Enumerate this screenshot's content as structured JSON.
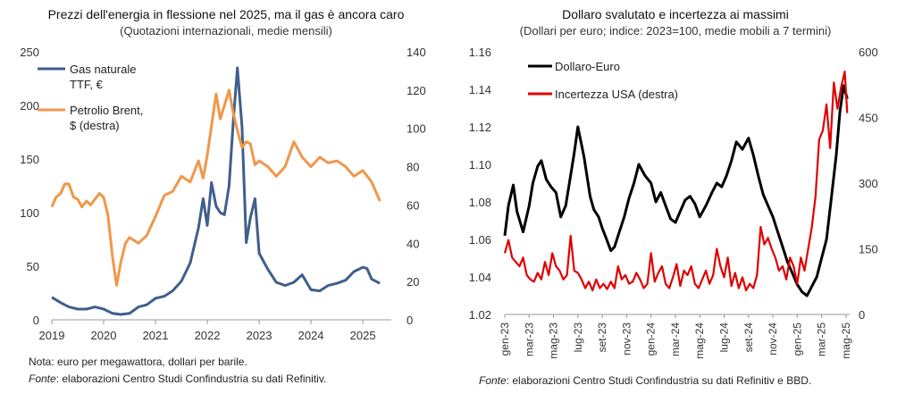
{
  "chart_data": [
    {
      "type": "line",
      "title": "Prezzi dell'energia in flessione nel 2025, ma il gas è ancora caro",
      "subtitle": "(Quotazioni internazionali, medie mensili)",
      "x_ticks": [
        "2019",
        "2020",
        "2021",
        "2022",
        "2023",
        "2024",
        "2025"
      ],
      "ylim_left": [
        0,
        250
      ],
      "yticks_left": [
        "0",
        "50",
        "100",
        "150",
        "200",
        "250"
      ],
      "ylim_right": [
        0,
        140
      ],
      "yticks_right": [
        "0",
        "20",
        "40",
        "60",
        "80",
        "100",
        "120",
        "140"
      ],
      "grid": false,
      "legend_position": "top-left",
      "series": [
        {
          "name": "Gas naturale TTF, €",
          "legend_lines": [
            "Gas naturale",
            "TTF, €"
          ],
          "axis": "left",
          "color": "#3f5f8c",
          "x": [
            2019.0,
            2019.17,
            2019.33,
            2019.5,
            2019.67,
            2019.83,
            2020.0,
            2020.17,
            2020.33,
            2020.5,
            2020.67,
            2020.83,
            2021.0,
            2021.17,
            2021.33,
            2021.5,
            2021.67,
            2021.83,
            2021.92,
            2022.0,
            2022.08,
            2022.17,
            2022.25,
            2022.33,
            2022.42,
            2022.5,
            2022.58,
            2022.67,
            2022.75,
            2022.83,
            2022.92,
            2023.0,
            2023.17,
            2023.33,
            2023.5,
            2023.67,
            2023.83,
            2024.0,
            2024.17,
            2024.33,
            2024.5,
            2024.67,
            2024.83,
            2025.0,
            2025.08,
            2025.17,
            2025.33
          ],
          "values": [
            21,
            16,
            12,
            10,
            10,
            12,
            10,
            6,
            5,
            6,
            12,
            14,
            20,
            22,
            27,
            36,
            53,
            86,
            113,
            88,
            128,
            106,
            100,
            98,
            125,
            185,
            235,
            180,
            72,
            95,
            113,
            62,
            47,
            35,
            32,
            35,
            42,
            28,
            27,
            32,
            34,
            37,
            45,
            49,
            48,
            38,
            34
          ]
        },
        {
          "name": "Petrolio Brent, $ (destra)",
          "legend_lines": [
            "Petrolio Brent,",
            "$ (destra)"
          ],
          "axis": "right",
          "color": "#f0974a",
          "x": [
            2019.0,
            2019.08,
            2019.17,
            2019.25,
            2019.33,
            2019.42,
            2019.5,
            2019.58,
            2019.67,
            2019.75,
            2019.83,
            2019.92,
            2020.0,
            2020.08,
            2020.17,
            2020.25,
            2020.33,
            2020.42,
            2020.5,
            2020.67,
            2020.83,
            2021.0,
            2021.17,
            2021.33,
            2021.5,
            2021.67,
            2021.83,
            2021.92,
            2022.0,
            2022.17,
            2022.25,
            2022.33,
            2022.42,
            2022.5,
            2022.58,
            2022.67,
            2022.75,
            2022.83,
            2022.92,
            2023.0,
            2023.17,
            2023.33,
            2023.5,
            2023.67,
            2023.83,
            2024.0,
            2024.17,
            2024.33,
            2024.5,
            2024.67,
            2024.83,
            2025.0,
            2025.17,
            2025.33
          ],
          "values": [
            59,
            64,
            66,
            71,
            71,
            64,
            63,
            59,
            62,
            60,
            63,
            66,
            64,
            55,
            33,
            18,
            30,
            40,
            43,
            40,
            44,
            54,
            65,
            67,
            75,
            72,
            83,
            74,
            86,
            118,
            105,
            112,
            120,
            108,
            99,
            90,
            93,
            92,
            81,
            83,
            80,
            75,
            80,
            93,
            85,
            80,
            85,
            82,
            83,
            80,
            75,
            78,
            72,
            62
          ]
        }
      ],
      "notes": [
        {
          "prefix": "",
          "text": "Nota: euro per megawattora, dollari per barile."
        },
        {
          "prefix": "Fonte",
          "text": ": elaborazioni Centro Studi Confindustria su dati Refinitiv."
        }
      ]
    },
    {
      "type": "line",
      "title": "Dollaro svalutato e incertezza ai massimi",
      "subtitle": "(Dollari per euro; indice: 2023=100, medie mobili a 7 termini)",
      "x_ticks": [
        "gen-23",
        "mar-23",
        "mag-23",
        "lug-23",
        "set-23",
        "nov-23",
        "gen-24",
        "mar-24",
        "mag-24",
        "lug-24",
        "set-24",
        "nov-24",
        "gen-25",
        "mar-25",
        "mag-25"
      ],
      "xlim_months": [
        0,
        28.3
      ],
      "ylim_left": [
        1.02,
        1.16
      ],
      "yticks_left": [
        "1.02",
        "1.04",
        "1.06",
        "1.08",
        "1.10",
        "1.12",
        "1.14",
        "1.16"
      ],
      "ylim_right": [
        0,
        600
      ],
      "yticks_right": [
        "0",
        "150",
        "300",
        "450",
        "600"
      ],
      "grid": false,
      "legend_position": "top-left",
      "series": [
        {
          "name": "Dollaro-Euro",
          "axis": "left",
          "color": "#000000",
          "x": [
            0,
            0.3,
            0.7,
            1.0,
            1.5,
            2.0,
            2.3,
            2.7,
            3.0,
            3.4,
            3.8,
            4.2,
            4.6,
            5.0,
            5.3,
            5.7,
            6.0,
            6.5,
            7.0,
            7.3,
            7.7,
            8.0,
            8.3,
            8.7,
            9.0,
            9.4,
            9.8,
            10.2,
            10.6,
            11.0,
            11.5,
            12.0,
            12.4,
            12.8,
            13.2,
            13.6,
            14.0,
            14.4,
            14.8,
            15.2,
            15.6,
            16.0,
            16.5,
            17.0,
            17.4,
            17.8,
            18.2,
            18.6,
            19.0,
            19.5,
            20.0,
            20.4,
            20.8,
            21.2,
            21.6,
            22.0,
            22.4,
            22.8,
            23.2,
            23.6,
            24.0,
            24.4,
            24.8,
            25.2,
            25.6,
            26.0,
            26.4,
            26.8,
            27.2,
            27.5,
            27.8,
            28.1
          ],
          "values": [
            1.062,
            1.078,
            1.089,
            1.075,
            1.064,
            1.078,
            1.09,
            1.099,
            1.102,
            1.092,
            1.088,
            1.085,
            1.072,
            1.078,
            1.09,
            1.106,
            1.12,
            1.104,
            1.083,
            1.076,
            1.072,
            1.066,
            1.061,
            1.054,
            1.056,
            1.064,
            1.072,
            1.082,
            1.09,
            1.1,
            1.094,
            1.09,
            1.08,
            1.085,
            1.078,
            1.071,
            1.069,
            1.075,
            1.081,
            1.083,
            1.079,
            1.072,
            1.078,
            1.085,
            1.09,
            1.088,
            1.094,
            1.102,
            1.112,
            1.108,
            1.114,
            1.105,
            1.094,
            1.084,
            1.078,
            1.072,
            1.064,
            1.056,
            1.048,
            1.042,
            1.036,
            1.032,
            1.03,
            1.035,
            1.04,
            1.05,
            1.06,
            1.082,
            1.105,
            1.128,
            1.142,
            1.135
          ]
        },
        {
          "name": "Incertezza USA (destra)",
          "axis": "right",
          "color": "#e00000",
          "x": [
            0,
            0.3,
            0.6,
            0.9,
            1.2,
            1.5,
            1.8,
            2.1,
            2.4,
            2.7,
            3.0,
            3.3,
            3.6,
            3.9,
            4.2,
            4.5,
            4.8,
            5.1,
            5.4,
            5.7,
            6.0,
            6.3,
            6.6,
            6.9,
            7.2,
            7.5,
            7.8,
            8.1,
            8.4,
            8.7,
            9.0,
            9.3,
            9.6,
            9.9,
            10.2,
            10.5,
            10.8,
            11.1,
            11.4,
            11.7,
            12.0,
            12.3,
            12.6,
            12.9,
            13.2,
            13.5,
            13.8,
            14.1,
            14.4,
            14.7,
            15.0,
            15.3,
            15.6,
            15.9,
            16.2,
            16.5,
            16.8,
            17.1,
            17.4,
            17.7,
            18.0,
            18.3,
            18.6,
            18.9,
            19.2,
            19.5,
            19.8,
            20.1,
            20.4,
            20.7,
            21.0,
            21.3,
            21.6,
            21.9,
            22.2,
            22.5,
            22.8,
            23.1,
            23.4,
            23.7,
            24.0,
            24.3,
            24.6,
            24.9,
            25.2,
            25.5,
            25.8,
            26.1,
            26.4,
            26.7,
            27.0,
            27.3,
            27.6,
            27.9,
            28.1
          ],
          "values": [
            140,
            170,
            130,
            120,
            110,
            130,
            90,
            80,
            75,
            95,
            80,
            120,
            90,
            140,
            110,
            100,
            80,
            90,
            180,
            100,
            95,
            80,
            60,
            75,
            55,
            80,
            60,
            70,
            58,
            75,
            60,
            110,
            80,
            90,
            70,
            75,
            95,
            80,
            60,
            70,
            140,
            75,
            95,
            110,
            70,
            60,
            85,
            115,
            65,
            100,
            90,
            110,
            70,
            60,
            80,
            100,
            70,
            90,
            150,
            110,
            85,
            130,
            65,
            95,
            60,
            85,
            55,
            70,
            60,
            90,
            200,
            160,
            175,
            150,
            130,
            100,
            110,
            80,
            130,
            110,
            70,
            130,
            100,
            150,
            200,
            270,
            400,
            420,
            480,
            380,
            530,
            470,
            520,
            555,
            460
          ]
        }
      ],
      "notes": [
        {
          "prefix": "Fonte",
          "text": ": elaborazioni Centro Studi Confindustria su dati Refinitiv e BBD."
        }
      ]
    }
  ]
}
